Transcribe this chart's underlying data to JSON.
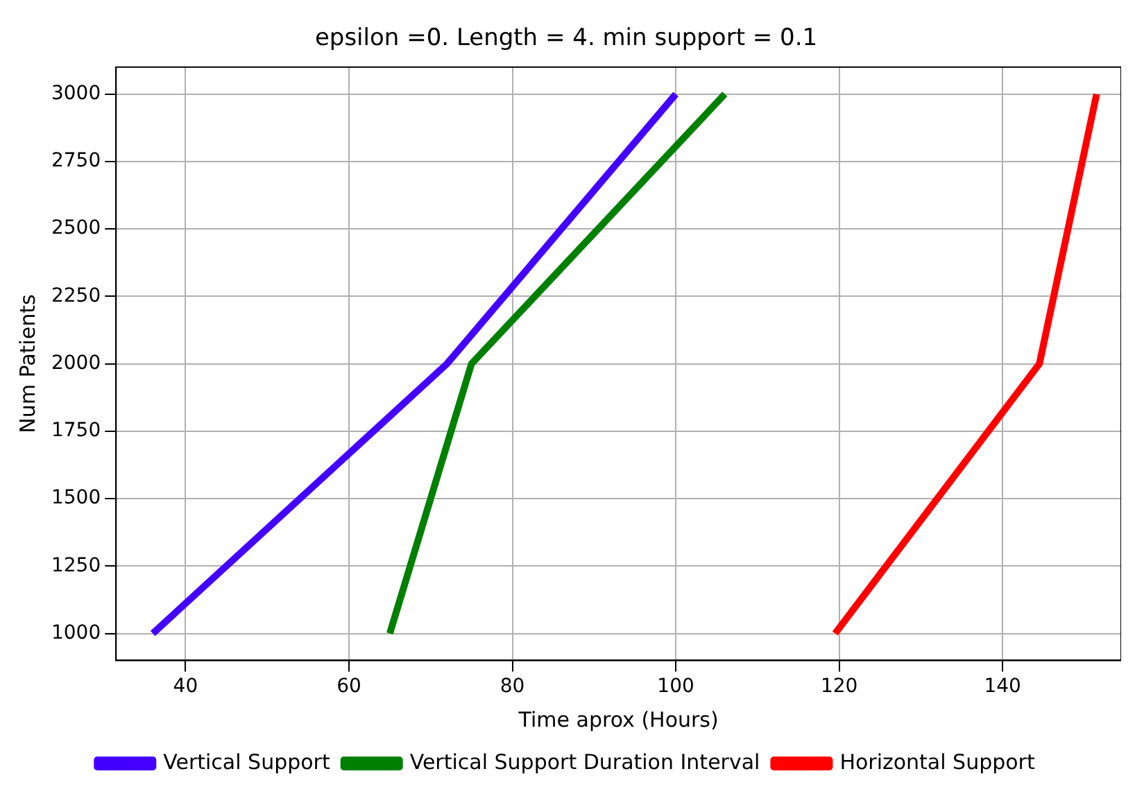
{
  "chart_data": {
    "type": "line",
    "title": "epsilon =0. Length = 4. min support = 0.1",
    "xlabel": "Time aprox (Hours)",
    "ylabel": "Num Patients",
    "xlim": [
      31.5,
      154.5
    ],
    "xticks": [
      40,
      60,
      80,
      100,
      120,
      140
    ],
    "ylim": [
      900,
      3100
    ],
    "yticks": [
      1000,
      1250,
      1500,
      1750,
      2000,
      2250,
      2500,
      2750,
      3000
    ],
    "grid": true,
    "legend": "bottom",
    "marker": "none",
    "line_style": "solid",
    "series": [
      {
        "name": "Vertical Support",
        "color": "#4400ff",
        "x": [
          36,
          72,
          100
        ],
        "values": [
          1000,
          2000,
          3000
        ]
      },
      {
        "name": "Vertical Support Duration Interval",
        "color": "#008000",
        "x": [
          65,
          75,
          106
        ],
        "values": [
          1000,
          2000,
          3000
        ]
      },
      {
        "name": "Horizontal Support",
        "color": "#ff0000",
        "x": [
          119.5,
          144.5,
          151.5
        ],
        "values": [
          1000,
          2000,
          3000
        ]
      }
    ]
  }
}
